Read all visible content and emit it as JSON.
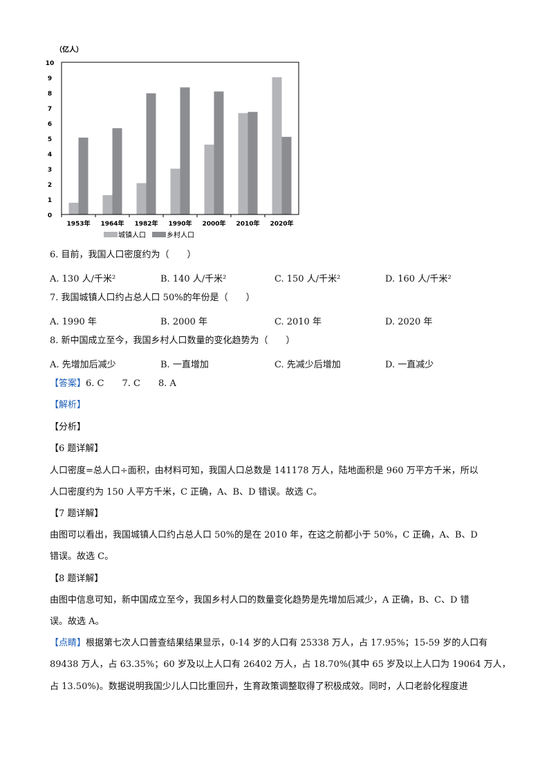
{
  "chart_data": {
    "type": "bar",
    "ylabel": "（亿人）",
    "ylim": [
      0,
      10
    ],
    "yticks": [
      "0",
      "1",
      "2",
      "3",
      "4",
      "5",
      "6",
      "7",
      "8",
      "9",
      "10"
    ],
    "categories": [
      "1953年",
      "1964年",
      "1982年",
      "1990年",
      "2000年",
      "2010年",
      "2020年"
    ],
    "series": [
      {
        "name": "城镇人口",
        "color": "#b4b5b9",
        "values": [
          0.77,
          1.27,
          2.06,
          3.01,
          4.59,
          6.66,
          9.02
        ]
      },
      {
        "name": "乡村人口",
        "color": "#8c8d91",
        "values": [
          5.05,
          5.67,
          7.96,
          8.35,
          8.08,
          6.74,
          5.1
        ]
      }
    ],
    "legend": "bottom",
    "grid": false
  },
  "q6": {
    "stem": "6. 目前，我国人口密度约为（　　）",
    "options": [
      "A. 130 人/千米²",
      "B. 140 人/千米²",
      "C. 150 人/千米²",
      "D. 160 人/千米²"
    ]
  },
  "q7": {
    "stem": "7. 我国城镇人口约占总人口 50%的年份是（　　）",
    "options": [
      "A. 1990 年",
      "B. 2000 年",
      "C. 2010 年",
      "D. 2020 年"
    ]
  },
  "q8": {
    "stem": "8. 新中国成立至今，我国乡村人口数量的变化趋势为（　　）",
    "options": [
      "A.  先增加后减少",
      "B.  一直增加",
      "C.  先减少后增加",
      "D.  一直减少"
    ]
  },
  "answer": {
    "tag": "【答案】",
    "text": "6. C　　7. C　　8. A"
  },
  "jiexi": "【解析】",
  "fenxi": "【分析】",
  "d6": {
    "tag": "【6 题详解】",
    "lines": [
      "人口密度=总人口÷面积，由材料可知，我国人口总数是 141178 万人，陆地面积是 960 万平方千米，所以",
      "人口密度约为 150 人平方千米，C 正确，A、B、D 错误。故选 C。"
    ]
  },
  "d7": {
    "tag": "【7 题详解】",
    "lines": [
      "由图可以看出，我国城镇人口约占总人口 50%的是在 2010 年，在这之前都小于 50%，C 正确，A、B、D",
      "错误。故选 C。"
    ]
  },
  "d8": {
    "tag": "【8 题详解】",
    "lines": [
      "由图中信息可知，新中国成立至今，我国乡村人口的数量变化趋势是先增加后减少，A 正确，B、C、D 错",
      "误。故选 A。"
    ]
  },
  "dianjing": {
    "tag": "【点睛】",
    "lines": [
      "根据第七次人口普查结果结果显示，0-14 岁的人口有 25338 万人，占 17.95%；15-59 岁的人口有",
      "89438 万人，占 63.35%；60 岁及以上人口有 26402 万人，占 18.70%(其中 65 岁及以上人口为 19064 万人，",
      "占 13.50%)。数据说明我国少儿人口比重回升，生育政策调整取得了积极成效。同时，人口老龄化程度进"
    ]
  }
}
